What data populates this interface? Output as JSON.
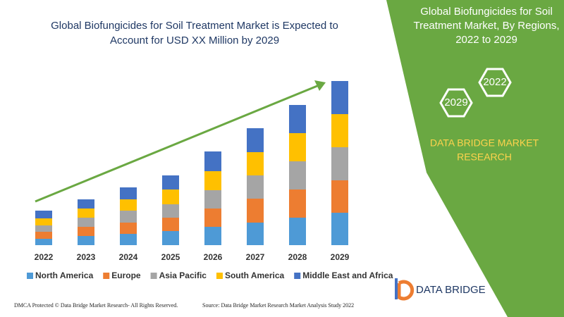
{
  "chart_data": {
    "type": "stacked_bar",
    "title": [
      "Global Biofungicides for Soil Treatment Market is Expected to",
      "Account for USD XX Million by 2029"
    ],
    "categories": [
      "2022",
      "2023",
      "2024",
      "2025",
      "2026",
      "2027",
      "2028",
      "2029"
    ],
    "series": [
      {
        "name": "North America",
        "color": "#4e9ad6",
        "values": [
          9,
          13,
          16,
          20,
          26,
          32,
          39,
          46
        ]
      },
      {
        "name": "Europe",
        "color": "#ed7d31",
        "values": [
          10,
          13,
          16,
          19,
          26,
          34,
          40,
          46
        ]
      },
      {
        "name": "Asia Pacific",
        "color": "#a5a5a5",
        "values": [
          9,
          13,
          17,
          19,
          26,
          33,
          40,
          47
        ]
      },
      {
        "name": "South America",
        "color": "#ffc000",
        "values": [
          10,
          13,
          16,
          21,
          27,
          33,
          40,
          47
        ]
      },
      {
        "name": "Middle East and Africa",
        "color": "#4472c4",
        "values": [
          11,
          13,
          17,
          20,
          28,
          34,
          40,
          47
        ]
      }
    ]
  },
  "panel": {
    "title": [
      "Global Biofungicides for Soil",
      "Treatment Market, By Regions,",
      "2022 to 2029"
    ],
    "hexagons": [
      "2022",
      "2029"
    ],
    "brand": [
      "DATA BRIDGE MARKET",
      "RESEARCH"
    ]
  },
  "logo": "DATA BRIDGE",
  "footer": {
    "left": "DMCA Protected © Data Bridge Market Research- All Rights Reserved.",
    "right": "Source: Data Bridge Market Research Market Analysis Study 2022"
  }
}
